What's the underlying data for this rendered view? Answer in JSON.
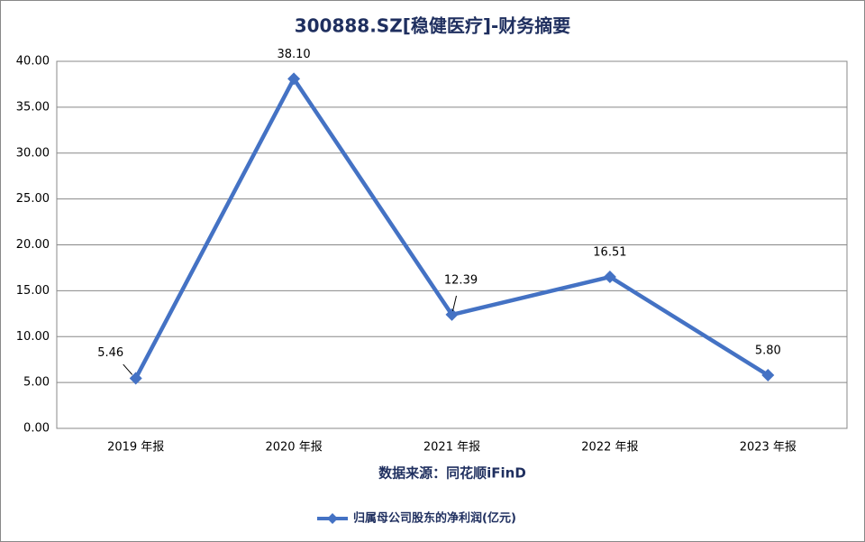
{
  "chart_data": {
    "type": "line",
    "title": "300888.SZ[稳健医疗]-财务摘要",
    "annotation": "数据来源：同花顺iFinD",
    "categories": [
      "2019 年报",
      "2020 年报",
      "2021 年报",
      "2022 年报",
      "2023 年报"
    ],
    "series": [
      {
        "name": "归属母公司股东的净利润(亿元)",
        "color": "#4472c4",
        "values": [
          5.46,
          38.1,
          12.39,
          16.51,
          5.8
        ],
        "value_labels": [
          "5.46",
          "38.10",
          "12.39",
          "16.51",
          "5.80"
        ]
      }
    ],
    "ylim": [
      0,
      40
    ],
    "yticks": [
      {
        "value": 0,
        "label": "0.00"
      },
      {
        "value": 5,
        "label": "5.00"
      },
      {
        "value": 10,
        "label": "10.00"
      },
      {
        "value": 15,
        "label": "15.00"
      },
      {
        "value": 20,
        "label": "20.00"
      },
      {
        "value": 25,
        "label": "25.00"
      },
      {
        "value": 30,
        "label": "30.00"
      },
      {
        "value": 35,
        "label": "35.00"
      },
      {
        "value": 40,
        "label": "40.00"
      }
    ],
    "grid": true,
    "legend": "bottom"
  }
}
